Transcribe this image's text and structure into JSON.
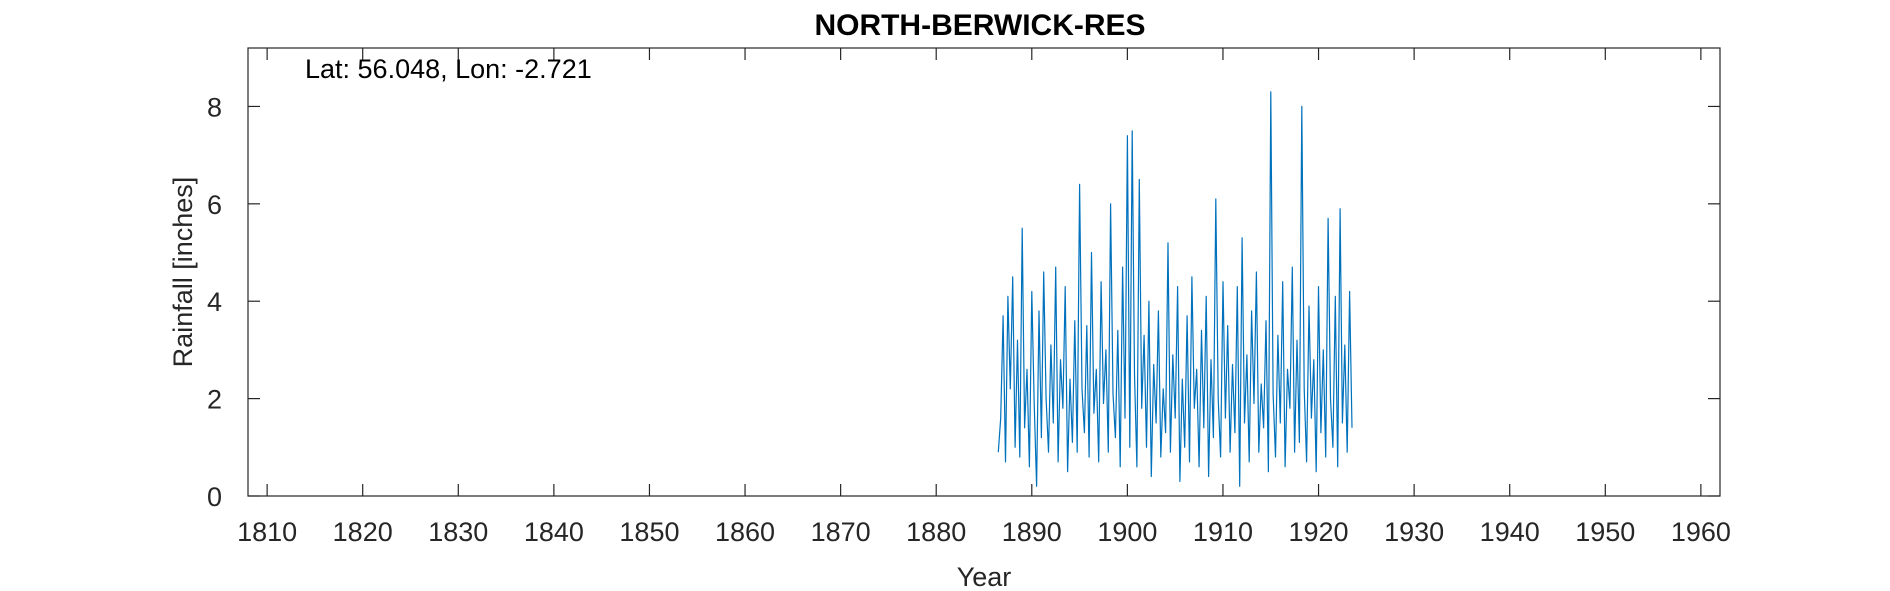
{
  "chart_data": {
    "type": "line",
    "title": "NORTH-BERWICK-RES",
    "annotation": "Lat: 56.048, Lon: -2.721",
    "xlabel": "Year",
    "ylabel": "Rainfall [inches]",
    "xlim": [
      1808,
      1962
    ],
    "ylim": [
      0,
      9.2
    ],
    "xticks": [
      1810,
      1820,
      1830,
      1840,
      1850,
      1860,
      1870,
      1880,
      1890,
      1900,
      1910,
      1920,
      1930,
      1940,
      1950,
      1960
    ],
    "yticks": [
      0,
      2,
      4,
      6,
      8
    ],
    "grid": false,
    "series": [
      {
        "color": "#0072BD",
        "x_start": 1886.5,
        "x_step": 0.25,
        "values": [
          0.9,
          1.6,
          3.7,
          0.7,
          4.1,
          2.2,
          4.5,
          1.0,
          3.2,
          0.8,
          5.5,
          1.4,
          2.6,
          0.6,
          4.2,
          1.9,
          0.2,
          3.8,
          1.2,
          4.6,
          2.0,
          0.9,
          3.1,
          1.5,
          4.7,
          0.7,
          2.8,
          1.8,
          4.3,
          0.5,
          2.4,
          1.1,
          3.6,
          0.9,
          6.4,
          2.2,
          1.3,
          3.5,
          0.8,
          5.0,
          1.7,
          2.6,
          0.7,
          4.4,
          1.9,
          3.0,
          0.9,
          6.0,
          2.1,
          1.2,
          3.4,
          0.6,
          4.7,
          1.6,
          7.4,
          1.0,
          7.5,
          2.5,
          0.6,
          6.5,
          1.8,
          3.3,
          1.0,
          4.0,
          0.4,
          2.7,
          1.5,
          3.8,
          0.8,
          2.2,
          1.3,
          5.2,
          0.9,
          2.9,
          1.6,
          4.3,
          0.3,
          2.4,
          1.0,
          3.7,
          0.7,
          4.5,
          1.8,
          2.6,
          0.6,
          3.4,
          1.4,
          4.1,
          0.4,
          2.8,
          1.2,
          6.1,
          2.0,
          0.8,
          4.4,
          1.6,
          3.5,
          0.9,
          2.7,
          1.3,
          4.3,
          0.2,
          5.3,
          1.5,
          2.9,
          0.7,
          3.8,
          1.9,
          4.6,
          0.9,
          2.3,
          1.4,
          3.6,
          0.5,
          8.3,
          2.1,
          0.8,
          3.3,
          1.5,
          4.4,
          0.6,
          2.6,
          1.8,
          4.7,
          0.9,
          3.2,
          1.1,
          8.0,
          2.2,
          0.7,
          3.9,
          1.6,
          2.8,
          0.5,
          4.3,
          1.3,
          3.0,
          0.8,
          5.7,
          2.0,
          1.0,
          4.1,
          0.6,
          5.9,
          1.5,
          3.1,
          0.9,
          4.2,
          1.4
        ]
      }
    ]
  }
}
